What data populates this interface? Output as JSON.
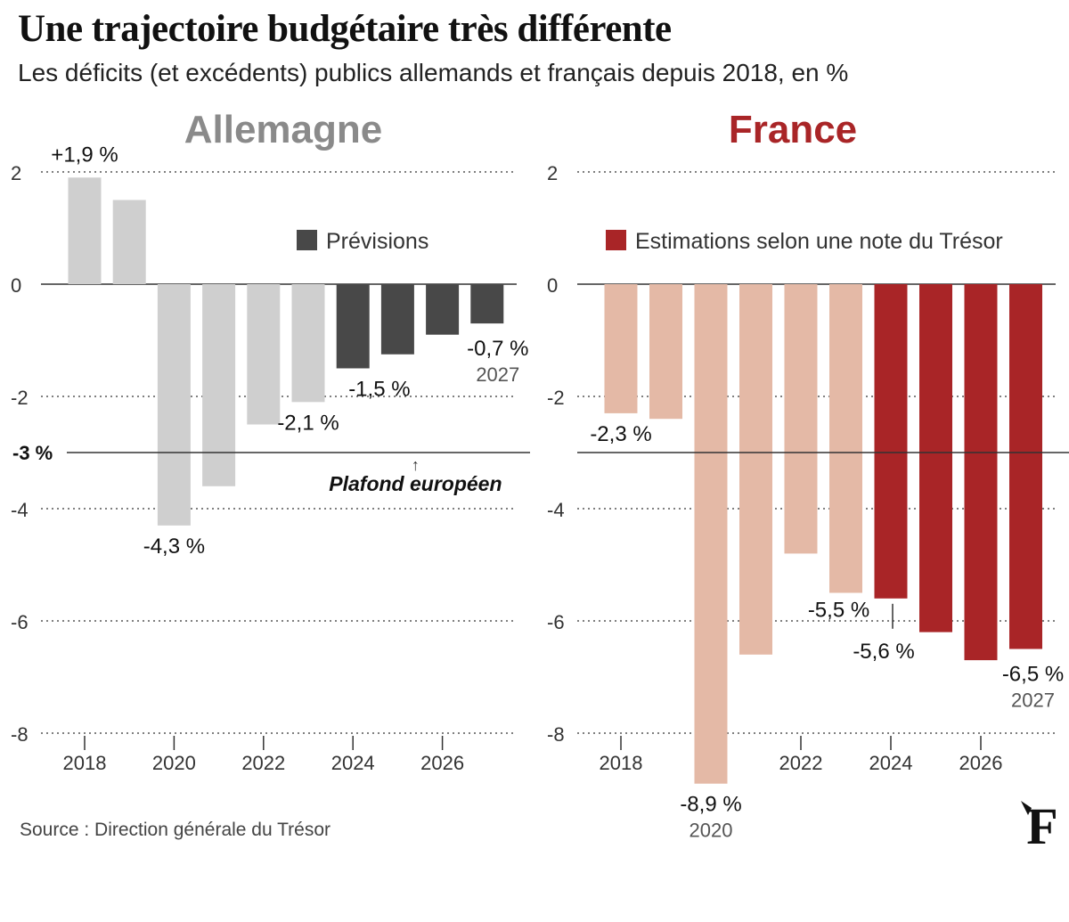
{
  "title": "Une trajectoire budgétaire très différente",
  "subtitle": "Les déficits (et excédents) publics allemands et français depuis 2018, en %",
  "source": "Source : Direction générale du Trésor",
  "logo_letter": "F",
  "colors": {
    "de_hist": "#cfcfcf",
    "de_fore": "#484848",
    "fr_hist": "#e4b9a6",
    "fr_fore": "#a92527",
    "de_title": "#8a8a8a",
    "fr_title": "#a92527",
    "gridline": "#555555",
    "text": "#1a1a1a",
    "muted": "#555555"
  },
  "chart_data": [
    {
      "type": "bar",
      "panel": "left",
      "title": "Allemagne",
      "years": [
        2018,
        2019,
        2020,
        2021,
        2022,
        2023,
        2024,
        2025,
        2026,
        2027
      ],
      "values": [
        1.9,
        1.5,
        -4.3,
        -3.6,
        -2.5,
        -2.1,
        -1.5,
        -1.25,
        -0.9,
        -0.7
      ],
      "forecast_from": 2024,
      "ylim": [
        -8,
        2
      ],
      "yticks": [
        "2",
        "0",
        "-2",
        "-4",
        "-6",
        "-8"
      ],
      "xtick_labels": [
        "2018",
        "2020",
        "2022",
        "2024",
        "2026"
      ],
      "legend_label": "Prévisions",
      "reference_line": {
        "value": -3,
        "label": "-3 %",
        "annotation": "Plafond européen",
        "annotation_arrow": "↑"
      },
      "bar_labels": [
        {
          "year": 2018,
          "text": "+1,9 %"
        },
        {
          "year": 2020,
          "text": "-4,3 %"
        },
        {
          "year": 2023,
          "text": "-2,1 %"
        },
        {
          "year": 2024,
          "text": "-1,5 %"
        },
        {
          "year": 2027,
          "text": "-0,7 %",
          "sub": "2027"
        }
      ]
    },
    {
      "type": "bar",
      "panel": "right",
      "title": "France",
      "years": [
        2018,
        2019,
        2020,
        2021,
        2022,
        2023,
        2024,
        2025,
        2026,
        2027
      ],
      "values": [
        -2.3,
        -2.4,
        -8.9,
        -6.6,
        -4.8,
        -5.5,
        -5.6,
        -6.2,
        -6.7,
        -6.5
      ],
      "forecast_from": 2024,
      "ylim": [
        -8,
        2
      ],
      "yticks": [
        "2",
        "0",
        "-2",
        "-4",
        "-6",
        "-8"
      ],
      "xtick_labels": [
        "2018",
        "2022",
        "2024",
        "2026"
      ],
      "legend_label": "Estimations selon une note du Trésor",
      "reference_line": {
        "value": -3
      },
      "bar_labels": [
        {
          "year": 2018,
          "text": "-2,3 %"
        },
        {
          "year": 2020,
          "text": "-8,9 %",
          "sub": "2020"
        },
        {
          "year": 2023,
          "text": "-5,5 %"
        },
        {
          "year": 2024,
          "text": "-5,6 %"
        },
        {
          "year": 2027,
          "text": "-6,5 %",
          "sub": "2027"
        }
      ]
    }
  ]
}
